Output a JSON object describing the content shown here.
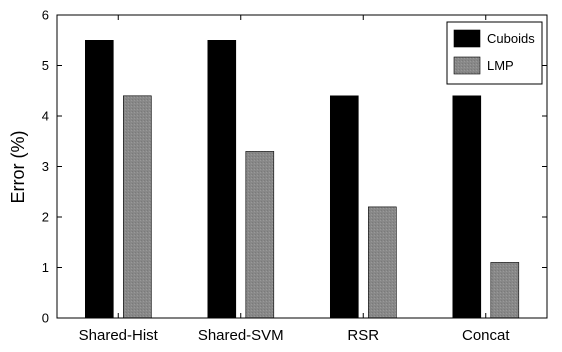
{
  "chart_data": {
    "type": "bar",
    "categories": [
      "Shared-Hist",
      "Shared-SVM",
      "RSR",
      "Concat"
    ],
    "series": [
      {
        "name": "Cuboids",
        "values": [
          5.5,
          5.5,
          4.4,
          4.4
        ],
        "color": "#000000"
      },
      {
        "name": "LMP",
        "values": [
          4.4,
          3.3,
          2.2,
          1.1
        ],
        "color": "#888888"
      }
    ],
    "title": "",
    "xlabel": "",
    "ylabel": "Error (%)",
    "ylim": [
      0,
      6
    ],
    "yticks": [
      "0",
      "1",
      "2",
      "3",
      "4",
      "5",
      "6"
    ],
    "grid": false,
    "legend_position": "top-right"
  }
}
